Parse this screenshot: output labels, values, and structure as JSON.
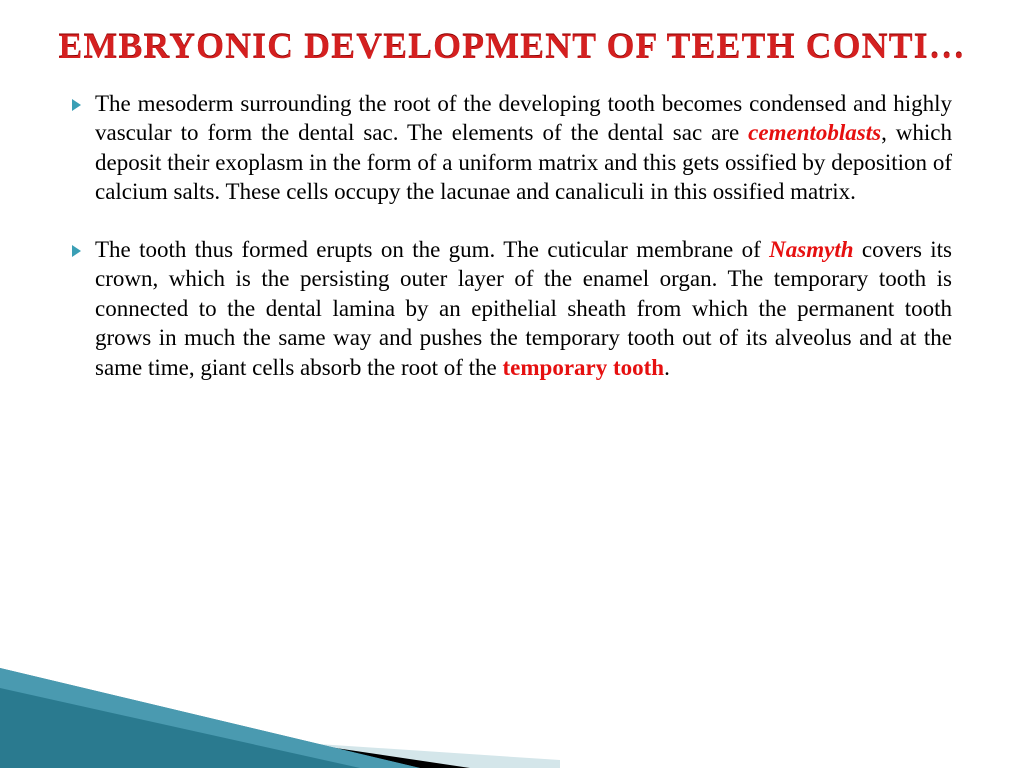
{
  "title": "Embryonic development of teeth conti…",
  "colors": {
    "title_color": "#d42020",
    "highlight_color": "#e61010",
    "bullet_color": "#3a9fb5",
    "body_text": "#000000",
    "background": "#ffffff",
    "decor_teal_dark": "#2a7a8f",
    "decor_teal_light": "#7db8c7",
    "decor_pale": "#d4e6ea",
    "decor_black": "#000000"
  },
  "typography": {
    "title_fontsize": 36,
    "body_fontsize": 23,
    "body_lineheight": 1.28
  },
  "bullets": [
    {
      "segments": [
        {
          "text": "The mesoderm surrounding the root of the developing tooth becomes condensed and highly vascular to form the dental sac. The elements of the dental sac are ",
          "style": "plain"
        },
        {
          "text": "cementoblasts",
          "style": "hl-italic"
        },
        {
          "text": ", which deposit their exoplasm in the form of a uniform matrix and this gets ossified by deposition of calcium salts. These cells occupy the lacunae and canaliculi in this ossified matrix.",
          "style": "plain"
        }
      ]
    },
    {
      "segments": [
        {
          "text": "The tooth thus formed erupts on the gum. The cuticular membrane of ",
          "style": "plain"
        },
        {
          "text": "Nasmyth",
          "style": "hl-italic"
        },
        {
          "text": " covers its crown, which is the persisting outer layer of the enamel organ. The temporary tooth is connected to the dental lamina by an epithelial sheath from which the permanent tooth grows in much the same way and pushes the temporary tooth out of its alveolus and at the same time, giant cells absorb the root of the ",
          "style": "plain"
        },
        {
          "text": "temporary tooth",
          "style": "hl-bold"
        },
        {
          "text": ".",
          "style": "plain"
        }
      ]
    }
  ]
}
